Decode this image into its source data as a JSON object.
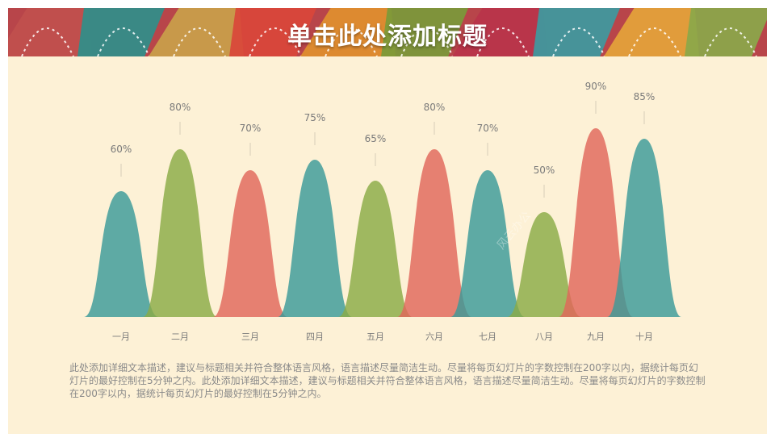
{
  "slide": {
    "title": "单击此处添加标题",
    "description": "此处添加详细文本描述，建议与标题相关并符合整体语言风格，语言描述尽量简洁生动。尽量将每页幻灯片的字数控制在200字以内，据统计每页幻灯片的最好控制在5分钟之内。此处添加详细文本描述，建议与标题相关并符合整体语言风格，语言描述尽量简洁生动。尽量将每页幻灯片的字数控制在200字以内，据统计每页幻灯片的最好控制在5分钟之内。",
    "watermark": "风云办公"
  },
  "banner": {
    "colors": [
      "#c0504d",
      "#2f8f8a",
      "#c9a14a",
      "#d9473a",
      "#e0902e",
      "#7a9a3a",
      "#b8344a",
      "#3d9aa0",
      "#e4a43a",
      "#8aa84a"
    ]
  },
  "chart_data": {
    "type": "area",
    "categories": [
      "一月",
      "二月",
      "三月",
      "四月",
      "五月",
      "六月",
      "七月",
      "八月",
      "九月",
      "十月"
    ],
    "values": [
      60,
      80,
      70,
      75,
      65,
      80,
      70,
      50,
      90,
      85
    ],
    "data_labels": [
      "60%",
      "80%",
      "70%",
      "75%",
      "65%",
      "80%",
      "70%",
      "50%",
      "90%",
      "85%"
    ],
    "colors": [
      "#3a9a98",
      "#8aab45",
      "#e0675a",
      "#3a9a98",
      "#8aab45",
      "#e0675a",
      "#3a9a98",
      "#8aab45",
      "#e0675a",
      "#3a9a98"
    ],
    "ylim": [
      0,
      100
    ],
    "title": "",
    "xlabel": "",
    "ylabel": "",
    "grid": false,
    "legend": false
  }
}
